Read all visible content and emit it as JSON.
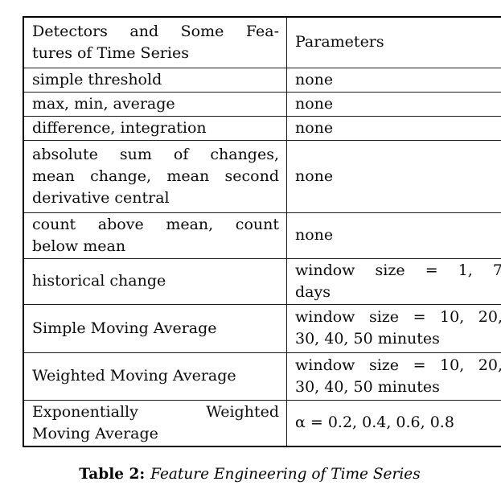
{
  "table": {
    "header": {
      "features": [
        "Detectors and Some Fea-",
        "tures of Time Series"
      ],
      "parameters": "Parameters"
    },
    "rows": [
      {
        "feature": "simple threshold",
        "parameters": "none"
      },
      {
        "feature": "max, min, average",
        "parameters": "none"
      },
      {
        "feature": "difference, integration",
        "parameters": "none"
      },
      {
        "feature": [
          "absolute sum of changes,",
          "mean change, mean second",
          "derivative central"
        ],
        "parameters": "none"
      },
      {
        "feature": [
          "count above mean, count",
          "below mean"
        ],
        "parameters": "none"
      },
      {
        "feature": "historical change",
        "parameters": [
          "window size = 1, 7",
          "days"
        ]
      },
      {
        "feature": "Simple Moving Average",
        "parameters": [
          "window size = 10, 20,",
          "30, 40, 50 minutes"
        ]
      },
      {
        "feature": "Weighted Moving Average",
        "parameters": [
          "window size = 10, 20,",
          "30, 40, 50 minutes"
        ]
      },
      {
        "feature": [
          "Exponentially Weighted",
          "Moving Average"
        ],
        "parameters": "α = 0.2, 0.4, 0.6, 0.8"
      }
    ]
  },
  "caption": {
    "label": "Table 2:",
    "text": "Feature Engineering of Time Series"
  }
}
